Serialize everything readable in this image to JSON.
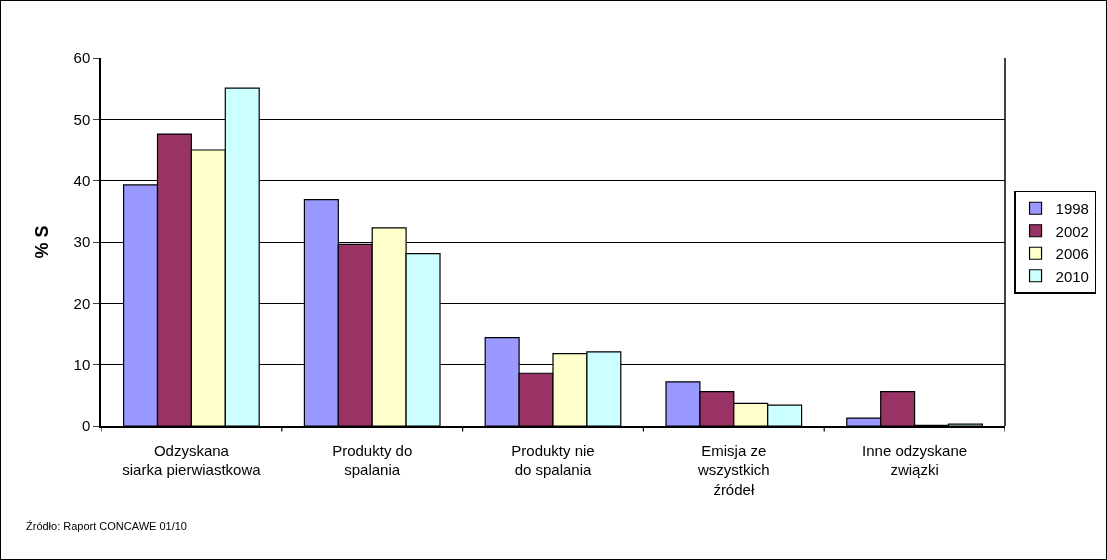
{
  "chart_data": {
    "type": "bar",
    "ylabel": "% S",
    "categories": [
      "Odzyskana\nsiarka pierwiastkowa",
      "Produkty do\nspalania",
      "Produkty nie\ndo spalania",
      "Emisja ze\nwszystkich\nźródeł",
      "Inne odzyskane\nzwiązki"
    ],
    "series": [
      {
        "name": "1998",
        "color": "#9999ff",
        "values": [
          39.3,
          36.9,
          14.4,
          7.2,
          1.3
        ]
      },
      {
        "name": "2002",
        "color": "#993366",
        "values": [
          47.6,
          29.6,
          8.6,
          5.6,
          5.6
        ]
      },
      {
        "name": "2006",
        "color": "#ffffcc",
        "values": [
          45,
          32.3,
          11.8,
          3.7,
          0.1
        ]
      },
      {
        "name": "2010",
        "color": "#ccffff",
        "values": [
          55.1,
          28.1,
          12.1,
          3.4,
          0.3
        ]
      }
    ],
    "ylim": [
      0,
      60
    ],
    "yticks": [
      0,
      10,
      20,
      30,
      40,
      50,
      60
    ],
    "grid": "y",
    "legend": "right",
    "annotations": [
      "Źródło: Raport CONCAWE 01/10"
    ]
  }
}
